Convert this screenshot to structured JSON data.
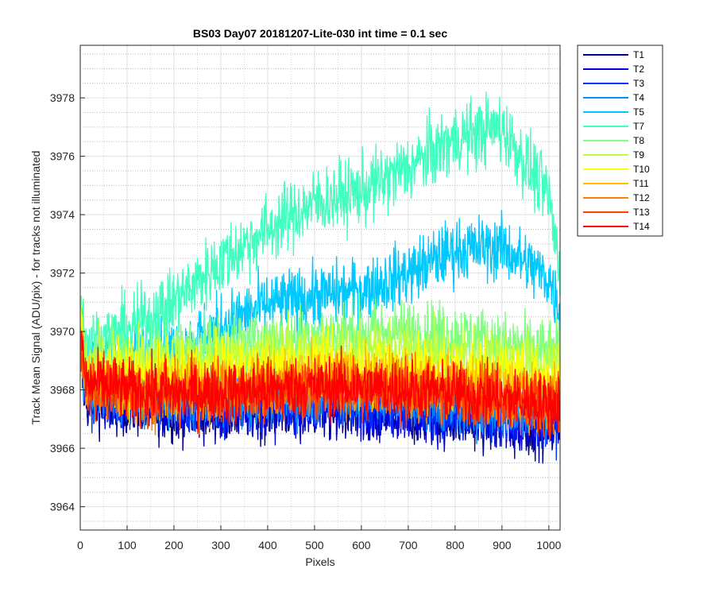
{
  "chart_data": {
    "type": "line",
    "title": "BS03 Day07 20181207-Lite-030 int time = 0.1 sec",
    "xlabel": "Pixels",
    "ylabel": "Track Mean Signal (ADU/pix) - for tracks not illuminated",
    "xlim": [
      0,
      1024
    ],
    "ylim": [
      3963.2,
      3979.8
    ],
    "xticks": [
      0,
      100,
      200,
      300,
      400,
      500,
      600,
      700,
      800,
      900,
      1000
    ],
    "yticks": [
      3964,
      3966,
      3968,
      3970,
      3972,
      3974,
      3976,
      3978
    ],
    "grid": "major and minor",
    "legend_position": "outside right, top",
    "baseline_x": [
      0,
      100,
      200,
      300,
      400,
      500,
      600,
      700,
      800,
      900,
      1000,
      1024
    ],
    "series": [
      {
        "name": "T1",
        "color": "#00008f",
        "noise": 0.9,
        "baseline_y": [
          3967.6,
          3967.4,
          3967.2,
          3967.2,
          3967.3,
          3967.3,
          3967.2,
          3967.1,
          3967.0,
          3966.8,
          3966.7,
          3966.8
        ]
      },
      {
        "name": "T2",
        "color": "#0000e0",
        "noise": 0.9,
        "baseline_y": [
          3967.8,
          3967.5,
          3967.3,
          3967.3,
          3967.4,
          3967.4,
          3967.3,
          3967.2,
          3967.1,
          3966.9,
          3966.8,
          3966.9
        ]
      },
      {
        "name": "T3",
        "color": "#0030ff",
        "noise": 0.9,
        "baseline_y": [
          3967.9,
          3967.7,
          3967.5,
          3967.5,
          3967.6,
          3967.6,
          3967.5,
          3967.4,
          3967.3,
          3967.1,
          3967.0,
          3967.1
        ]
      },
      {
        "name": "T4",
        "color": "#0090ff",
        "noise": 0.9,
        "baseline_y": [
          3968.0,
          3967.8,
          3967.7,
          3967.7,
          3967.8,
          3967.8,
          3967.7,
          3967.6,
          3967.5,
          3967.3,
          3967.2,
          3967.3
        ]
      },
      {
        "name": "T5",
        "color": "#00c8ff",
        "noise": 1.0,
        "baseline_y": [
          3969.0,
          3969.0,
          3969.3,
          3970.2,
          3970.9,
          3971.2,
          3971.4,
          3972.0,
          3972.8,
          3972.9,
          3971.8,
          3970.8
        ]
      },
      {
        "name": "T7",
        "color": "#40ffbf",
        "noise": 1.1,
        "baseline_y": [
          3969.5,
          3970.0,
          3971.0,
          3972.4,
          3973.5,
          3974.4,
          3974.8,
          3975.6,
          3976.6,
          3977.0,
          3974.6,
          3972.0
        ]
      },
      {
        "name": "T8",
        "color": "#80ff80",
        "noise": 1.0,
        "baseline_y": [
          3969.0,
          3969.2,
          3969.3,
          3969.5,
          3969.7,
          3969.9,
          3970.0,
          3970.0,
          3969.9,
          3969.6,
          3969.3,
          3969.3
        ]
      },
      {
        "name": "T9",
        "color": "#bfff40",
        "noise": 1.0,
        "baseline_y": [
          3968.8,
          3968.8,
          3968.9,
          3969.0,
          3969.2,
          3969.3,
          3969.3,
          3969.3,
          3969.2,
          3969.0,
          3968.8,
          3968.8
        ]
      },
      {
        "name": "T10",
        "color": "#ffff00",
        "noise": 1.0,
        "baseline_y": [
          3968.6,
          3968.5,
          3968.5,
          3968.6,
          3968.7,
          3968.8,
          3968.8,
          3968.8,
          3968.7,
          3968.5,
          3968.3,
          3968.3
        ]
      },
      {
        "name": "T11",
        "color": "#ffbf00",
        "noise": 0.95,
        "baseline_y": [
          3968.3,
          3968.2,
          3968.1,
          3968.2,
          3968.3,
          3968.4,
          3968.4,
          3968.3,
          3968.2,
          3968.0,
          3967.8,
          3967.8
        ]
      },
      {
        "name": "T12",
        "color": "#ff8000",
        "noise": 0.95,
        "baseline_y": [
          3968.1,
          3967.9,
          3967.8,
          3967.9,
          3968.0,
          3968.1,
          3968.1,
          3968.0,
          3967.9,
          3967.7,
          3967.5,
          3967.5
        ]
      },
      {
        "name": "T13",
        "color": "#ff4000",
        "noise": 0.95,
        "baseline_y": [
          3968.2,
          3968.0,
          3967.9,
          3968.0,
          3968.0,
          3968.1,
          3968.1,
          3968.0,
          3967.9,
          3967.8,
          3967.6,
          3967.6
        ]
      },
      {
        "name": "T14",
        "color": "#ff0000",
        "noise": 0.95,
        "baseline_y": [
          3968.3,
          3968.0,
          3967.9,
          3967.9,
          3968.0,
          3968.1,
          3968.1,
          3968.0,
          3967.9,
          3967.7,
          3967.5,
          3967.5
        ]
      }
    ]
  }
}
